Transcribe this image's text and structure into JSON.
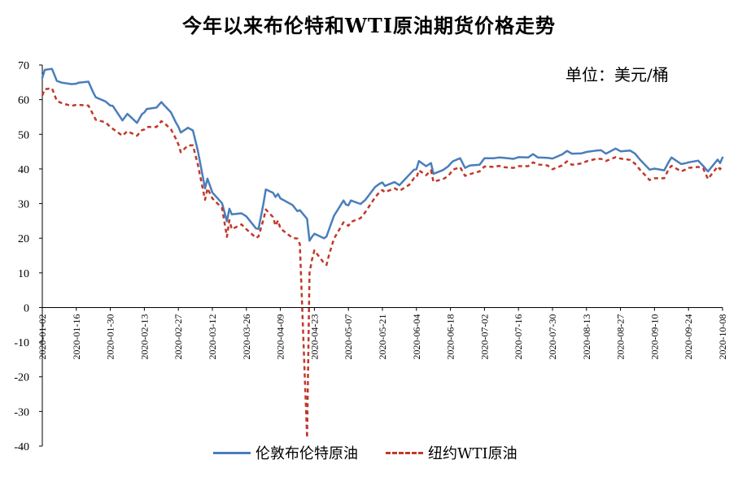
{
  "chart_data": {
    "type": "line",
    "title": "今年以来布伦特和WTI原油期货价格走势",
    "unit_label": "单位：美元/桶",
    "ylim": [
      -40,
      70
    ],
    "yticks": [
      70,
      60,
      50,
      40,
      30,
      20,
      10,
      0,
      -10,
      -20,
      -30,
      -40
    ],
    "xlim": [
      "2020-01-02",
      "2020-10-08"
    ],
    "xticks": [
      "2020-01-02",
      "2020-01-16",
      "2020-01-30",
      "2020-02-13",
      "2020-02-27",
      "2020-03-12",
      "2020-03-26",
      "2020-04-09",
      "2020-04-23",
      "2020-05-07",
      "2020-05-21",
      "2020-06-04",
      "2020-06-18",
      "2020-07-02",
      "2020-07-16",
      "2020-07-30",
      "2020-08-13",
      "2020-08-27",
      "2020-09-10",
      "2020-09-24",
      "2020-10-08"
    ],
    "grid": false,
    "legend": "bottom",
    "series": [
      {
        "name": "伦敦布伦特原油",
        "color": "#4a7ebb",
        "style": "solid",
        "points": [
          [
            "2020-01-02",
            66.3
          ],
          [
            "2020-01-03",
            68.6
          ],
          [
            "2020-01-06",
            68.9
          ],
          [
            "2020-01-08",
            65.4
          ],
          [
            "2020-01-10",
            64.9
          ],
          [
            "2020-01-14",
            64.5
          ],
          [
            "2020-01-16",
            64.6
          ],
          [
            "2020-01-17",
            64.9
          ],
          [
            "2020-01-21",
            65.2
          ],
          [
            "2020-01-23",
            62.0
          ],
          [
            "2020-01-24",
            60.7
          ],
          [
            "2020-01-28",
            59.5
          ],
          [
            "2020-01-30",
            58.3
          ],
          [
            "2020-01-31",
            58.2
          ],
          [
            "2020-02-04",
            54.0
          ],
          [
            "2020-02-06",
            55.9
          ],
          [
            "2020-02-10",
            53.3
          ],
          [
            "2020-02-12",
            55.8
          ],
          [
            "2020-02-13",
            56.3
          ],
          [
            "2020-02-14",
            57.3
          ],
          [
            "2020-02-18",
            57.7
          ],
          [
            "2020-02-20",
            59.3
          ],
          [
            "2020-02-21",
            58.5
          ],
          [
            "2020-02-24",
            56.3
          ],
          [
            "2020-02-26",
            53.4
          ],
          [
            "2020-02-27",
            52.2
          ],
          [
            "2020-02-28",
            50.5
          ],
          [
            "2020-03-02",
            51.9
          ],
          [
            "2020-03-04",
            51.1
          ],
          [
            "2020-03-06",
            45.3
          ],
          [
            "2020-03-09",
            34.4
          ],
          [
            "2020-03-10",
            37.2
          ],
          [
            "2020-03-12",
            33.2
          ],
          [
            "2020-03-16",
            30.1
          ],
          [
            "2020-03-18",
            24.9
          ],
          [
            "2020-03-19",
            28.5
          ],
          [
            "2020-03-20",
            26.9
          ],
          [
            "2020-03-24",
            27.2
          ],
          [
            "2020-03-26",
            26.3
          ],
          [
            "2020-03-30",
            22.8
          ],
          [
            "2020-03-31",
            22.7
          ],
          [
            "2020-04-02",
            29.9
          ],
          [
            "2020-04-03",
            34.1
          ],
          [
            "2020-04-06",
            33.1
          ],
          [
            "2020-04-07",
            31.9
          ],
          [
            "2020-04-08",
            32.8
          ],
          [
            "2020-04-09",
            31.5
          ],
          [
            "2020-04-14",
            29.6
          ],
          [
            "2020-04-16",
            27.8
          ],
          [
            "2020-04-17",
            28.1
          ],
          [
            "2020-04-20",
            25.6
          ],
          [
            "2020-04-21",
            19.3
          ],
          [
            "2020-04-22",
            20.4
          ],
          [
            "2020-04-23",
            21.3
          ],
          [
            "2020-04-27",
            20.0
          ],
          [
            "2020-04-28",
            20.5
          ],
          [
            "2020-04-29",
            22.5
          ],
          [
            "2020-05-01",
            26.4
          ],
          [
            "2020-05-05",
            30.9
          ],
          [
            "2020-05-06",
            29.7
          ],
          [
            "2020-05-07",
            29.5
          ],
          [
            "2020-05-08",
            30.9
          ],
          [
            "2020-05-12",
            29.9
          ],
          [
            "2020-05-14",
            31.1
          ],
          [
            "2020-05-18",
            34.8
          ],
          [
            "2020-05-20",
            35.8
          ],
          [
            "2020-05-21",
            36.1
          ],
          [
            "2020-05-22",
            35.1
          ],
          [
            "2020-05-26",
            36.2
          ],
          [
            "2020-05-28",
            35.3
          ],
          [
            "2020-06-01",
            38.3
          ],
          [
            "2020-06-03",
            39.8
          ],
          [
            "2020-06-04",
            39.9
          ],
          [
            "2020-06-05",
            42.3
          ],
          [
            "2020-06-08",
            40.8
          ],
          [
            "2020-06-10",
            41.7
          ],
          [
            "2020-06-11",
            38.6
          ],
          [
            "2020-06-15",
            39.7
          ],
          [
            "2020-06-17",
            40.7
          ],
          [
            "2020-06-18",
            41.5
          ],
          [
            "2020-06-19",
            42.2
          ],
          [
            "2020-06-22",
            43.1
          ],
          [
            "2020-06-24",
            40.3
          ],
          [
            "2020-06-26",
            41.0
          ],
          [
            "2020-06-30",
            41.2
          ],
          [
            "2020-07-02",
            43.1
          ],
          [
            "2020-07-06",
            43.1
          ],
          [
            "2020-07-08",
            43.3
          ],
          [
            "2020-07-10",
            43.2
          ],
          [
            "2020-07-14",
            42.9
          ],
          [
            "2020-07-16",
            43.4
          ],
          [
            "2020-07-20",
            43.3
          ],
          [
            "2020-07-22",
            44.3
          ],
          [
            "2020-07-24",
            43.3
          ],
          [
            "2020-07-28",
            43.2
          ],
          [
            "2020-07-30",
            43.0
          ],
          [
            "2020-08-03",
            44.2
          ],
          [
            "2020-08-05",
            45.2
          ],
          [
            "2020-08-07",
            44.4
          ],
          [
            "2020-08-11",
            44.5
          ],
          [
            "2020-08-13",
            44.9
          ],
          [
            "2020-08-17",
            45.3
          ],
          [
            "2020-08-19",
            45.4
          ],
          [
            "2020-08-21",
            44.4
          ],
          [
            "2020-08-25",
            45.9
          ],
          [
            "2020-08-27",
            45.1
          ],
          [
            "2020-08-31",
            45.3
          ],
          [
            "2020-09-02",
            44.4
          ],
          [
            "2020-09-04",
            42.7
          ],
          [
            "2020-09-08",
            39.8
          ],
          [
            "2020-09-10",
            40.1
          ],
          [
            "2020-09-14",
            39.6
          ],
          [
            "2020-09-16",
            42.2
          ],
          [
            "2020-09-17",
            43.3
          ],
          [
            "2020-09-21",
            41.4
          ],
          [
            "2020-09-23",
            41.7
          ],
          [
            "2020-09-24",
            41.9
          ],
          [
            "2020-09-28",
            42.4
          ],
          [
            "2020-09-30",
            40.9
          ],
          [
            "2020-10-02",
            39.3
          ],
          [
            "2020-10-06",
            42.7
          ],
          [
            "2020-10-07",
            41.7
          ],
          [
            "2020-10-08",
            43.3
          ]
        ]
      },
      {
        "name": "纽约WTI原油",
        "color": "#c0392b",
        "style": "dashed",
        "points": [
          [
            "2020-01-02",
            61.2
          ],
          [
            "2020-01-03",
            63.0
          ],
          [
            "2020-01-06",
            63.3
          ],
          [
            "2020-01-08",
            59.6
          ],
          [
            "2020-01-10",
            59.0
          ],
          [
            "2020-01-14",
            58.2
          ],
          [
            "2020-01-16",
            58.5
          ],
          [
            "2020-01-17",
            58.5
          ],
          [
            "2020-01-21",
            58.3
          ],
          [
            "2020-01-23",
            55.6
          ],
          [
            "2020-01-24",
            54.2
          ],
          [
            "2020-01-28",
            53.5
          ],
          [
            "2020-01-30",
            52.1
          ],
          [
            "2020-01-31",
            51.6
          ],
          [
            "2020-02-04",
            49.6
          ],
          [
            "2020-02-06",
            50.9
          ],
          [
            "2020-02-10",
            49.6
          ],
          [
            "2020-02-12",
            51.2
          ],
          [
            "2020-02-13",
            51.4
          ],
          [
            "2020-02-14",
            52.1
          ],
          [
            "2020-02-18",
            52.1
          ],
          [
            "2020-02-20",
            53.8
          ],
          [
            "2020-02-21",
            53.4
          ],
          [
            "2020-02-24",
            51.4
          ],
          [
            "2020-02-26",
            48.7
          ],
          [
            "2020-02-27",
            47.1
          ],
          [
            "2020-02-28",
            44.8
          ],
          [
            "2020-03-02",
            46.8
          ],
          [
            "2020-03-04",
            46.8
          ],
          [
            "2020-03-06",
            41.3
          ],
          [
            "2020-03-09",
            31.1
          ],
          [
            "2020-03-10",
            34.4
          ],
          [
            "2020-03-12",
            31.5
          ],
          [
            "2020-03-16",
            28.7
          ],
          [
            "2020-03-18",
            20.4
          ],
          [
            "2020-03-19",
            25.2
          ],
          [
            "2020-03-20",
            22.6
          ],
          [
            "2020-03-24",
            24.0
          ],
          [
            "2020-03-26",
            22.6
          ],
          [
            "2020-03-30",
            20.1
          ],
          [
            "2020-03-31",
            20.5
          ],
          [
            "2020-04-02",
            25.3
          ],
          [
            "2020-04-03",
            28.3
          ],
          [
            "2020-04-06",
            26.1
          ],
          [
            "2020-04-07",
            23.6
          ],
          [
            "2020-04-08",
            25.1
          ],
          [
            "2020-04-09",
            22.8
          ],
          [
            "2020-04-14",
            20.1
          ],
          [
            "2020-04-16",
            19.9
          ],
          [
            "2020-04-17",
            18.3
          ],
          [
            "2020-04-20",
            -37.6
          ],
          [
            "2020-04-21",
            10.0
          ],
          [
            "2020-04-22",
            13.8
          ],
          [
            "2020-04-23",
            16.5
          ],
          [
            "2020-04-27",
            12.8
          ],
          [
            "2020-04-28",
            12.3
          ],
          [
            "2020-04-29",
            15.1
          ],
          [
            "2020-05-01",
            19.8
          ],
          [
            "2020-05-05",
            24.6
          ],
          [
            "2020-05-06",
            24.0
          ],
          [
            "2020-05-07",
            23.6
          ],
          [
            "2020-05-08",
            24.7
          ],
          [
            "2020-05-12",
            25.8
          ],
          [
            "2020-05-14",
            27.6
          ],
          [
            "2020-05-18",
            31.8
          ],
          [
            "2020-05-20",
            33.5
          ],
          [
            "2020-05-21",
            33.9
          ],
          [
            "2020-05-22",
            33.3
          ],
          [
            "2020-05-26",
            34.4
          ],
          [
            "2020-05-28",
            33.7
          ],
          [
            "2020-06-01",
            35.4
          ],
          [
            "2020-06-03",
            37.3
          ],
          [
            "2020-06-04",
            37.4
          ],
          [
            "2020-06-05",
            39.6
          ],
          [
            "2020-06-08",
            38.2
          ],
          [
            "2020-06-10",
            39.6
          ],
          [
            "2020-06-11",
            36.3
          ],
          [
            "2020-06-15",
            37.1
          ],
          [
            "2020-06-17",
            37.9
          ],
          [
            "2020-06-18",
            38.8
          ],
          [
            "2020-06-19",
            39.8
          ],
          [
            "2020-06-22",
            40.5
          ],
          [
            "2020-06-24",
            38.0
          ],
          [
            "2020-06-26",
            38.5
          ],
          [
            "2020-06-30",
            39.3
          ],
          [
            "2020-07-02",
            40.7
          ],
          [
            "2020-07-06",
            40.6
          ],
          [
            "2020-07-08",
            40.9
          ],
          [
            "2020-07-10",
            40.5
          ],
          [
            "2020-07-14",
            40.3
          ],
          [
            "2020-07-16",
            40.8
          ],
          [
            "2020-07-20",
            40.8
          ],
          [
            "2020-07-22",
            41.9
          ],
          [
            "2020-07-24",
            41.3
          ],
          [
            "2020-07-28",
            41.0
          ],
          [
            "2020-07-30",
            39.9
          ],
          [
            "2020-08-03",
            41.0
          ],
          [
            "2020-08-05",
            42.2
          ],
          [
            "2020-08-07",
            41.2
          ],
          [
            "2020-08-11",
            41.6
          ],
          [
            "2020-08-13",
            42.2
          ],
          [
            "2020-08-17",
            42.9
          ],
          [
            "2020-08-19",
            42.9
          ],
          [
            "2020-08-21",
            42.3
          ],
          [
            "2020-08-25",
            43.4
          ],
          [
            "2020-08-27",
            43.0
          ],
          [
            "2020-08-31",
            42.6
          ],
          [
            "2020-09-02",
            41.5
          ],
          [
            "2020-09-04",
            39.8
          ],
          [
            "2020-09-08",
            36.8
          ],
          [
            "2020-09-10",
            37.3
          ],
          [
            "2020-09-14",
            37.3
          ],
          [
            "2020-09-16",
            40.2
          ],
          [
            "2020-09-17",
            40.9
          ],
          [
            "2020-09-21",
            39.3
          ],
          [
            "2020-09-23",
            39.9
          ],
          [
            "2020-09-24",
            40.3
          ],
          [
            "2020-09-28",
            40.6
          ],
          [
            "2020-09-30",
            40.2
          ],
          [
            "2020-10-02",
            37.1
          ],
          [
            "2020-10-06",
            40.7
          ],
          [
            "2020-10-07",
            39.9
          ],
          [
            "2020-10-08",
            41.2
          ]
        ]
      }
    ]
  }
}
